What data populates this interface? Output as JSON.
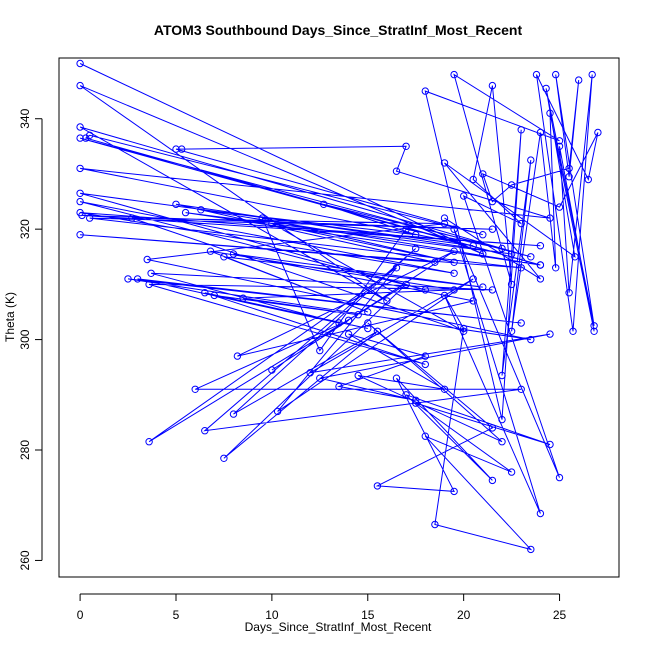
{
  "chart_data": {
    "type": "scatter",
    "title": "ATOM3 Southbound Days_Since_StratInf_Most_Recent",
    "xlabel": "Days_Since_StratInf_Most_Recent",
    "ylabel": "Theta (K)",
    "xlim": [
      -1.1,
      28.1
    ],
    "ylim": [
      257,
      351
    ],
    "x_ticks": [
      0,
      5,
      10,
      15,
      20,
      25
    ],
    "y_ticks": [
      260,
      280,
      300,
      320,
      340
    ],
    "grid": false,
    "legend": "none",
    "series_color": "#0000ff",
    "markers": "open-circle",
    "connected": true,
    "points": [
      [
        0.0,
        350.0
      ],
      [
        21.0,
        315.5
      ],
      [
        0.0,
        346.0
      ],
      [
        16.0,
        307.0
      ],
      [
        0.0,
        338.5
      ],
      [
        23.5,
        315.0
      ],
      [
        0.0,
        336.5
      ],
      [
        24.0,
        313.5
      ],
      [
        0.3,
        336.5
      ],
      [
        0.5,
        337.0
      ],
      [
        21.0,
        319.0
      ],
      [
        5.0,
        334.5
      ],
      [
        5.3,
        334.5
      ],
      [
        17.0,
        335.0
      ],
      [
        16.5,
        330.5
      ],
      [
        24.5,
        322.0
      ],
      [
        0.0,
        331.0
      ],
      [
        20.5,
        317.0
      ],
      [
        0.0,
        326.5
      ],
      [
        18.0,
        309.0
      ],
      [
        0.0,
        325.0
      ],
      [
        19.5,
        312.0
      ],
      [
        0.0,
        323.0
      ],
      [
        24.0,
        317.0
      ],
      [
        0.1,
        322.5
      ],
      [
        21.5,
        320.0
      ],
      [
        0.5,
        322.0
      ],
      [
        23.0,
        313.0
      ],
      [
        0.0,
        319.0
      ],
      [
        18.5,
        314.0
      ],
      [
        5.0,
        324.5
      ],
      [
        22.5,
        315.5
      ],
      [
        5.5,
        323.0
      ],
      [
        24.0,
        313.5
      ],
      [
        6.3,
        323.5
      ],
      [
        17.5,
        319.0
      ],
      [
        12.7,
        324.5
      ],
      [
        22.0,
        316.5
      ],
      [
        17.0,
        320.0
      ],
      [
        12.5,
        298.0
      ],
      [
        9.5,
        322.0
      ],
      [
        19.5,
        314.0
      ],
      [
        10.0,
        321.0
      ],
      [
        20.0,
        301.5
      ],
      [
        2.7,
        322.0
      ],
      [
        19.0,
        321.0
      ],
      [
        3.5,
        314.5
      ],
      [
        23.5,
        300.0
      ],
      [
        2.5,
        311.0
      ],
      [
        23.0,
        303.0
      ],
      [
        3.0,
        311.0
      ],
      [
        13.5,
        303.0
      ],
      [
        3.7,
        312.0
      ],
      [
        21.5,
        309.0
      ],
      [
        3.6,
        310.0
      ],
      [
        18.0,
        295.5
      ],
      [
        6.5,
        308.5
      ],
      [
        15.0,
        302.0
      ],
      [
        7.0,
        308.0
      ],
      [
        14.5,
        304.5
      ],
      [
        8.5,
        307.5
      ],
      [
        19.5,
        309.0
      ],
      [
        6.8,
        316.0
      ],
      [
        15.0,
        305.0
      ],
      [
        7.5,
        315.0
      ],
      [
        21.0,
        309.5
      ],
      [
        8.0,
        315.5
      ],
      [
        20.5,
        307.0
      ],
      [
        8.2,
        297.0
      ],
      [
        19.5,
        316.0
      ],
      [
        10.0,
        294.5
      ],
      [
        14.0,
        303.5
      ],
      [
        6.0,
        291.0
      ],
      [
        23.0,
        291.0
      ],
      [
        6.5,
        283.5
      ],
      [
        17.5,
        316.5
      ],
      [
        8.0,
        286.5
      ],
      [
        15.5,
        301.5
      ],
      [
        7.5,
        278.5
      ],
      [
        17.0,
        310.0
      ],
      [
        3.6,
        281.5
      ],
      [
        16.5,
        313.0
      ],
      [
        10.3,
        287.0
      ],
      [
        20.5,
        311.0
      ],
      [
        12.0,
        294.0
      ],
      [
        24.5,
        301.0
      ],
      [
        12.5,
        293.0
      ],
      [
        17.5,
        289.0
      ],
      [
        13.5,
        291.5
      ],
      [
        18.0,
        297.0
      ],
      [
        14.0,
        301.0
      ],
      [
        19.0,
        291.0
      ],
      [
        14.5,
        293.5
      ],
      [
        22.0,
        281.5
      ],
      [
        15.0,
        303.0
      ],
      [
        21.5,
        284.0
      ],
      [
        15.5,
        273.5
      ],
      [
        19.5,
        272.5
      ],
      [
        16.5,
        293.0
      ],
      [
        21.5,
        274.5
      ],
      [
        17.0,
        290.0
      ],
      [
        24.5,
        281.0
      ],
      [
        17.5,
        288.5
      ],
      [
        22.5,
        276.0
      ],
      [
        18.0,
        282.5
      ],
      [
        23.5,
        262.0
      ],
      [
        18.5,
        266.5
      ],
      [
        20.0,
        302.0
      ],
      [
        19.0,
        308.0
      ],
      [
        24.0,
        268.5
      ],
      [
        19.5,
        320.0
      ],
      [
        25.0,
        275.0
      ],
      [
        20.0,
        326.0
      ],
      [
        23.0,
        321.0
      ],
      [
        20.5,
        329.0
      ],
      [
        21.5,
        346.0
      ],
      [
        22.5,
        310.0
      ],
      [
        19.5,
        348.0
      ],
      [
        25.0,
        336.0
      ],
      [
        18.0,
        345.0
      ],
      [
        22.0,
        285.5
      ],
      [
        23.0,
        338.0
      ],
      [
        22.0,
        293.5
      ],
      [
        23.5,
        332.5
      ],
      [
        22.5,
        301.5
      ],
      [
        24.0,
        337.5
      ],
      [
        24.8,
        313.0
      ],
      [
        24.5,
        341.0
      ],
      [
        26.8,
        301.5
      ],
      [
        25.0,
        335.0
      ],
      [
        25.5,
        308.5
      ],
      [
        26.7,
        348.0
      ],
      [
        25.7,
        301.5
      ],
      [
        23.8,
        348.0
      ],
      [
        26.5,
        329.0
      ],
      [
        27.0,
        337.5
      ],
      [
        25.0,
        324.0
      ],
      [
        21.0,
        330.0
      ],
      [
        21.5,
        325.0
      ],
      [
        22.5,
        328.0
      ],
      [
        25.5,
        331.0
      ],
      [
        26.0,
        347.0
      ],
      [
        25.5,
        329.5
      ],
      [
        24.8,
        348.0
      ],
      [
        26.8,
        302.5
      ],
      [
        24.3,
        345.5
      ],
      [
        25.8,
        315.0
      ],
      [
        19.0,
        332.0
      ],
      [
        24.0,
        311.0
      ],
      [
        19.0,
        322.0
      ]
    ]
  }
}
